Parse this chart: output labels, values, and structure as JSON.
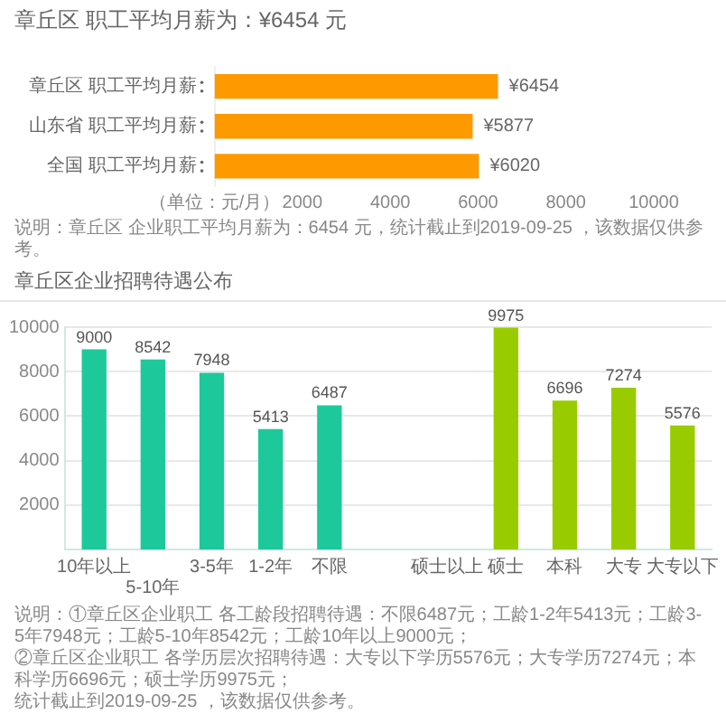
{
  "chart_data": [
    {
      "type": "bar",
      "orientation": "horizontal",
      "title": "章丘区 职工平均月薪为：¥6454 元",
      "categories": [
        "章丘区 职工平均月薪",
        "山东省 职工平均月薪",
        "全国 职工平均月薪"
      ],
      "values": [
        6454,
        5877,
        6020
      ],
      "color": "#ff9900",
      "value_labels": [
        "¥6454",
        "¥5877",
        "¥6020"
      ],
      "xlim": [
        0,
        10000
      ],
      "xticks": [
        {
          "value": 0,
          "label": "（单位：元/月）"
        },
        2000,
        4000,
        6000,
        8000,
        10000
      ],
      "annotations": [
        "说明：章丘区 企业职工平均月薪为：6454 元，统计截止到2019-09-25 ，该数据仅供参考。"
      ]
    },
    {
      "type": "bar",
      "title": "章丘区企业招聘待遇公布",
      "categories": [
        "10年以上",
        "5-10年",
        "3-5年",
        "1-2年",
        "不限",
        null,
        "硕士以上",
        "硕士",
        "本科",
        "大专",
        "大专以下"
      ],
      "values": [
        9000,
        8542,
        7948,
        5413,
        6487,
        null,
        null,
        9975,
        6696,
        7274,
        5576
      ],
      "colors": [
        "#1dc99b",
        "#1dc99b",
        "#1dc99b",
        "#1dc99b",
        "#1dc99b",
        "#1dc99b",
        "#99cc00",
        "#99cc00",
        "#99cc00",
        "#99cc00",
        "#99cc00"
      ],
      "ylim": [
        0,
        10000
      ],
      "yticks": [
        2000,
        4000,
        6000,
        8000,
        10000
      ],
      "grid": "y",
      "data_labels": true,
      "annotations": [
        "说明：①章丘区企业职工 各工龄段招聘待遇：不限6487元；工龄1-2年5413元；工龄3-5年7948元；工龄5-10年8542元；工龄10年以上9000元；",
        "②章丘区企业职工 各学历层次招聘待遇：大专以下学历5576元；大专学历7274元；本科学历6696元；硕士学历9975元；",
        "统计截止到2019-09-25 ，该数据仅供参考。"
      ]
    }
  ]
}
